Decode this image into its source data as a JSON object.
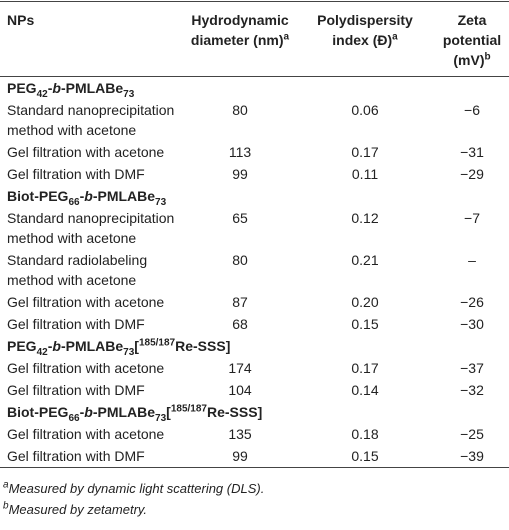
{
  "header": [
    {
      "text": "NPs"
    },
    {
      "text": "Hydrodynamic diameter (nm)",
      "sup": "a"
    },
    {
      "text": "Polydispersity index (Đ)",
      "sup": "a"
    },
    {
      "text": "Zeta potential (mV)",
      "sup": "b"
    }
  ],
  "groups": [
    {
      "title": [
        {
          "text": "PEG"
        },
        {
          "text": "42",
          "style": "sub"
        },
        {
          "text": "-"
        },
        {
          "text": "b",
          "style": "italic"
        },
        {
          "text": "-PMLABe"
        },
        {
          "text": "73",
          "style": "sub"
        }
      ],
      "rows": [
        [
          "Standard nanoprecipitation method with acetone",
          "80",
          "0.06",
          "−6"
        ],
        [
          "Gel filtration with acetone",
          "113",
          "0.17",
          "−31"
        ],
        [
          "Gel filtration with DMF",
          "99",
          "0.11",
          "−29"
        ]
      ]
    },
    {
      "title": [
        {
          "text": "Biot-PEG"
        },
        {
          "text": "66",
          "style": "sub"
        },
        {
          "text": "-"
        },
        {
          "text": "b",
          "style": "italic"
        },
        {
          "text": "-PMLABe"
        },
        {
          "text": "73",
          "style": "sub"
        }
      ],
      "rows": [
        [
          "Standard nanoprecipitation method with acetone",
          "65",
          "0.12",
          "−7"
        ],
        [
          "Standard radiolabeling method with acetone",
          "80",
          "0.21",
          "–"
        ],
        [
          "Gel filtration with acetone",
          "87",
          "0.20",
          "−26"
        ],
        [
          "Gel filtration with DMF",
          "68",
          "0.15",
          "−30"
        ]
      ]
    },
    {
      "title": [
        {
          "text": "PEG"
        },
        {
          "text": "42",
          "style": "sub"
        },
        {
          "text": "-"
        },
        {
          "text": "b",
          "style": "italic"
        },
        {
          "text": "-PMLABe"
        },
        {
          "text": "73",
          "style": "sub"
        },
        {
          "text": "["
        },
        {
          "text": "185/187",
          "style": "sup"
        },
        {
          "text": "Re-SSS]"
        }
      ],
      "rows": [
        [
          "Gel filtration with acetone",
          "174",
          "0.17",
          "−37"
        ],
        [
          "Gel filtration with DMF",
          "104",
          "0.14",
          "−32"
        ]
      ]
    },
    {
      "title": [
        {
          "text": "Biot-PEG"
        },
        {
          "text": "66",
          "style": "sub"
        },
        {
          "text": "-"
        },
        {
          "text": "b",
          "style": "italic"
        },
        {
          "text": "-PMLABe"
        },
        {
          "text": "73",
          "style": "sub"
        },
        {
          "text": "["
        },
        {
          "text": "185/187",
          "style": "sup"
        },
        {
          "text": "Re-SSS]"
        }
      ],
      "rows": [
        [
          "Gel filtration with acetone",
          "135",
          "0.18",
          "−25"
        ],
        [
          "Gel filtration with DMF",
          "99",
          "0.15",
          "−39"
        ]
      ]
    }
  ],
  "footnotes": [
    {
      "sup": "a",
      "text": "Measured by dynamic light scattering (DLS)."
    },
    {
      "sup": "b",
      "text": "Measured by zetametry."
    }
  ]
}
